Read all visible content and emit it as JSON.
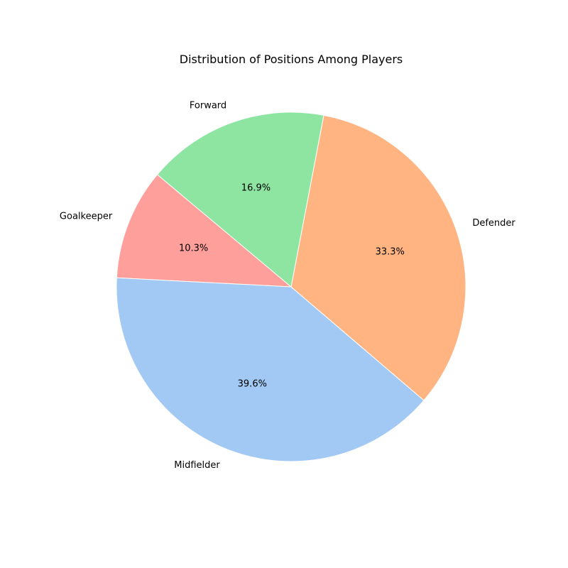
{
  "chart_data": {
    "type": "pie",
    "title": "Distribution of Positions Among Players",
    "slices": [
      {
        "label": "Goalkeeper",
        "value": 10.3,
        "value_label": "10.3%",
        "color": "#ff9f9b"
      },
      {
        "label": "Midfielder",
        "value": 39.6,
        "value_label": "39.6%",
        "color": "#a1c9f4"
      },
      {
        "label": "Defender",
        "value": 33.3,
        "value_label": "33.3%",
        "color": "#ffb482"
      },
      {
        "label": "Forward",
        "value": 16.9,
        "value_label": "16.9%",
        "color": "#8de5a1"
      }
    ],
    "start_angle_degrees": 140,
    "direction": "counterclockwise",
    "legend": "none"
  }
}
